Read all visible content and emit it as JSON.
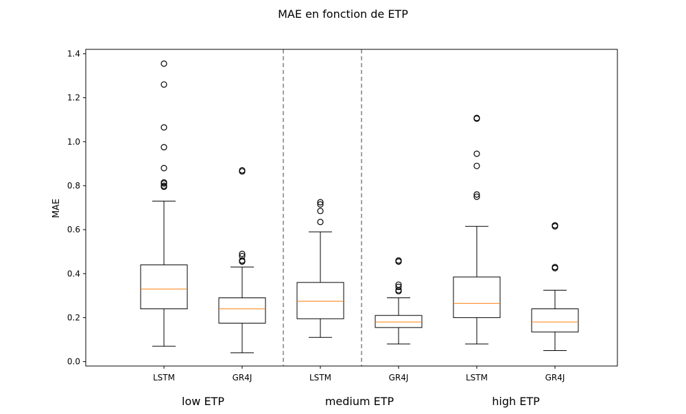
{
  "chart_data": {
    "type": "box",
    "title": "MAE en fonction de ETP",
    "ylabel": "MAE",
    "xlabel": "",
    "ylim": [
      -0.02,
      1.42
    ],
    "yticks": [
      "0.0",
      "0.2",
      "0.4",
      "0.6",
      "0.8",
      "1.0",
      "1.2",
      "1.4"
    ],
    "grid": false,
    "groups": [
      {
        "label": "low ETP",
        "boxes": [
          {
            "label": "LSTM",
            "whislo": 0.07,
            "q1": 0.24,
            "med": 0.33,
            "q3": 0.44,
            "whishi": 0.73,
            "fliers": [
              0.795,
              0.8,
              0.81,
              0.815,
              0.88,
              0.975,
              1.065,
              1.26,
              1.355
            ]
          },
          {
            "label": "GR4J",
            "whislo": 0.04,
            "q1": 0.175,
            "med": 0.24,
            "q3": 0.29,
            "whishi": 0.43,
            "fliers": [
              0.455,
              0.46,
              0.48,
              0.49,
              0.865,
              0.87
            ]
          }
        ]
      },
      {
        "label": "medium ETP",
        "boxes": [
          {
            "label": "LSTM",
            "whislo": 0.11,
            "q1": 0.195,
            "med": 0.275,
            "q3": 0.36,
            "whishi": 0.59,
            "fliers": [
              0.635,
              0.685,
              0.715,
              0.725
            ]
          },
          {
            "label": "GR4J",
            "whislo": 0.08,
            "q1": 0.155,
            "med": 0.18,
            "q3": 0.21,
            "whishi": 0.29,
            "fliers": [
              0.32,
              0.325,
              0.34,
              0.35,
              0.455,
              0.46
            ]
          }
        ]
      },
      {
        "label": "high ETP",
        "boxes": [
          {
            "label": "LSTM",
            "whislo": 0.08,
            "q1": 0.2,
            "med": 0.265,
            "q3": 0.385,
            "whishi": 0.615,
            "fliers": [
              0.75,
              0.76,
              0.89,
              0.945,
              1.105,
              1.108
            ]
          },
          {
            "label": "GR4J",
            "whislo": 0.05,
            "q1": 0.135,
            "med": 0.18,
            "q3": 0.24,
            "whishi": 0.325,
            "fliers": [
              0.425,
              0.43,
              0.615,
              0.62
            ]
          }
        ]
      }
    ],
    "colors": {
      "box": "#000000",
      "median": "#ff7f0e",
      "divider": "#808080"
    }
  }
}
